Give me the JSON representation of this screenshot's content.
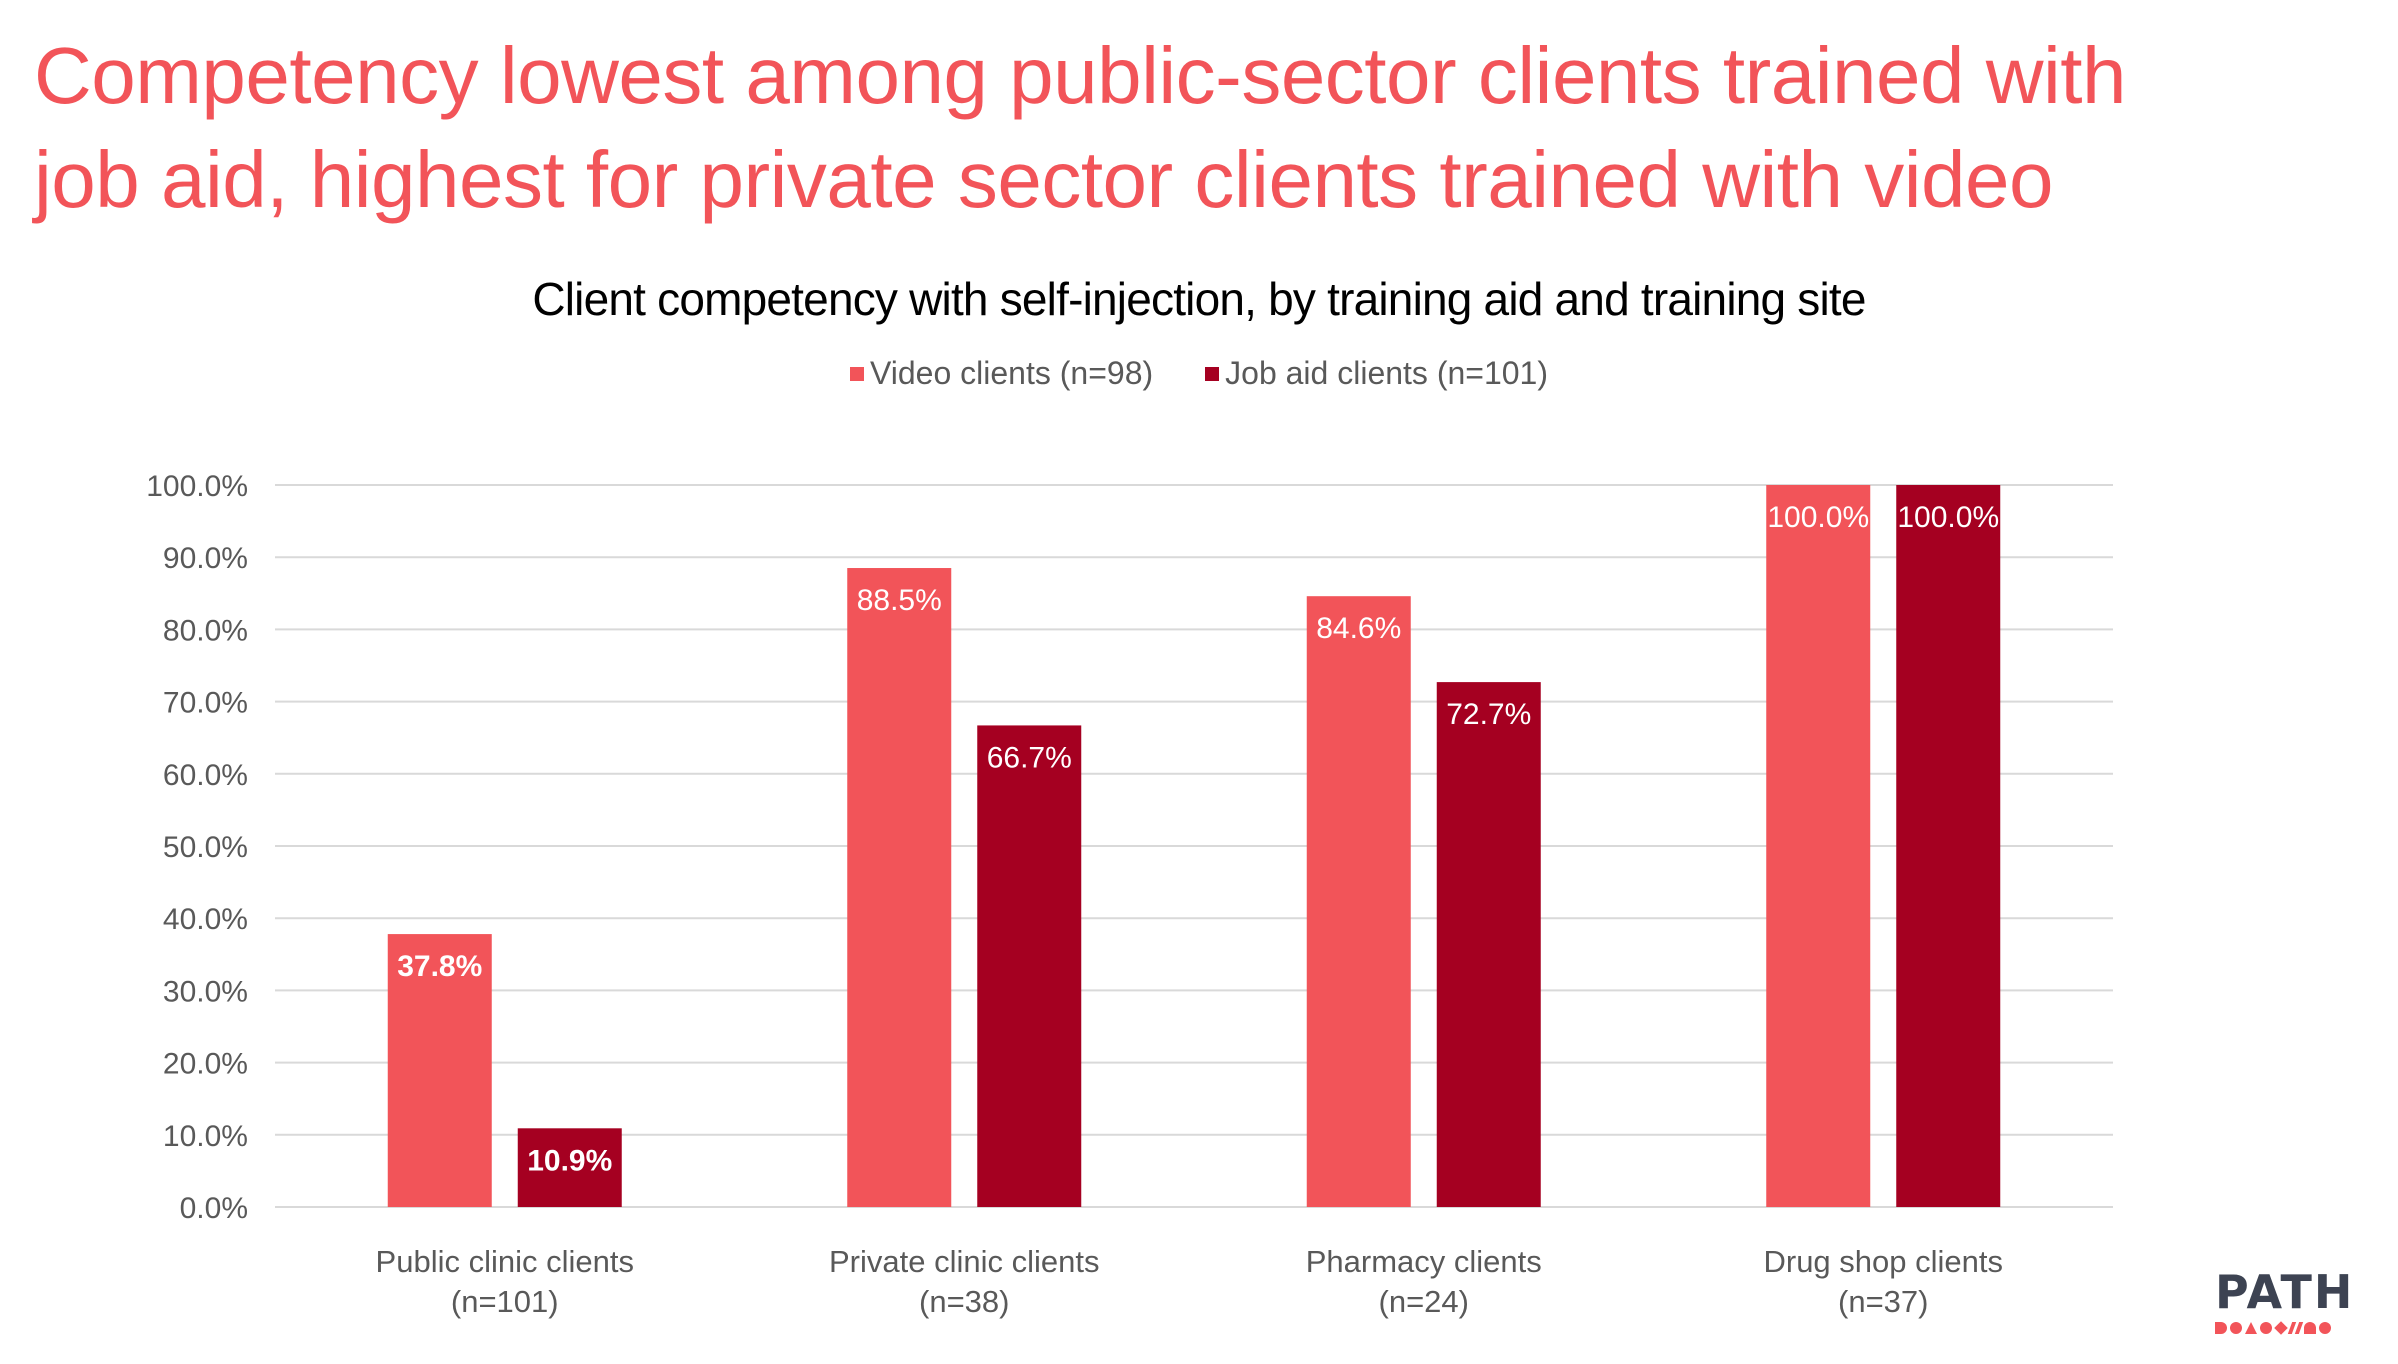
{
  "headline": {
    "line1": "Competency lowest among public-sector clients trained with",
    "line2": "job aid, highest for private sector clients trained with video"
  },
  "logo": {
    "text": "PATH"
  },
  "colors": {
    "video": "#F25459",
    "job_aid": "#A50021",
    "headline": "#F25459",
    "grid": "#D9D9D9",
    "axis_text": "#595959"
  },
  "chart_data": {
    "type": "bar",
    "title": "Client competency with self-injection, by training aid and training site",
    "xlabel": "",
    "ylabel": "",
    "ylim": [
      0,
      100
    ],
    "y_ticks": [
      "0.0%",
      "10.0%",
      "20.0%",
      "30.0%",
      "40.0%",
      "50.0%",
      "60.0%",
      "70.0%",
      "80.0%",
      "90.0%",
      "100.0%"
    ],
    "grid": true,
    "legend_position": "top-center",
    "categories": [
      {
        "line1": "Public clinic clients",
        "line2": "(n=101)"
      },
      {
        "line1": "Private clinic clients",
        "line2": "(n=38)"
      },
      {
        "line1": "Pharmacy clients",
        "line2": "(n=24)"
      },
      {
        "line1": "Drug shop clients",
        "line2": "(n=37)"
      }
    ],
    "series": [
      {
        "name": "Video clients (n=98)",
        "values": [
          37.8,
          88.5,
          84.6,
          100.0
        ],
        "labels": [
          "37.8%",
          "88.5%",
          "84.6%",
          "100.0%"
        ]
      },
      {
        "name": "Job aid clients (n=101)",
        "values": [
          10.9,
          66.7,
          72.7,
          100.0
        ],
        "labels": [
          "10.9%",
          "66.7%",
          "72.7%",
          "100.0%"
        ]
      }
    ]
  }
}
